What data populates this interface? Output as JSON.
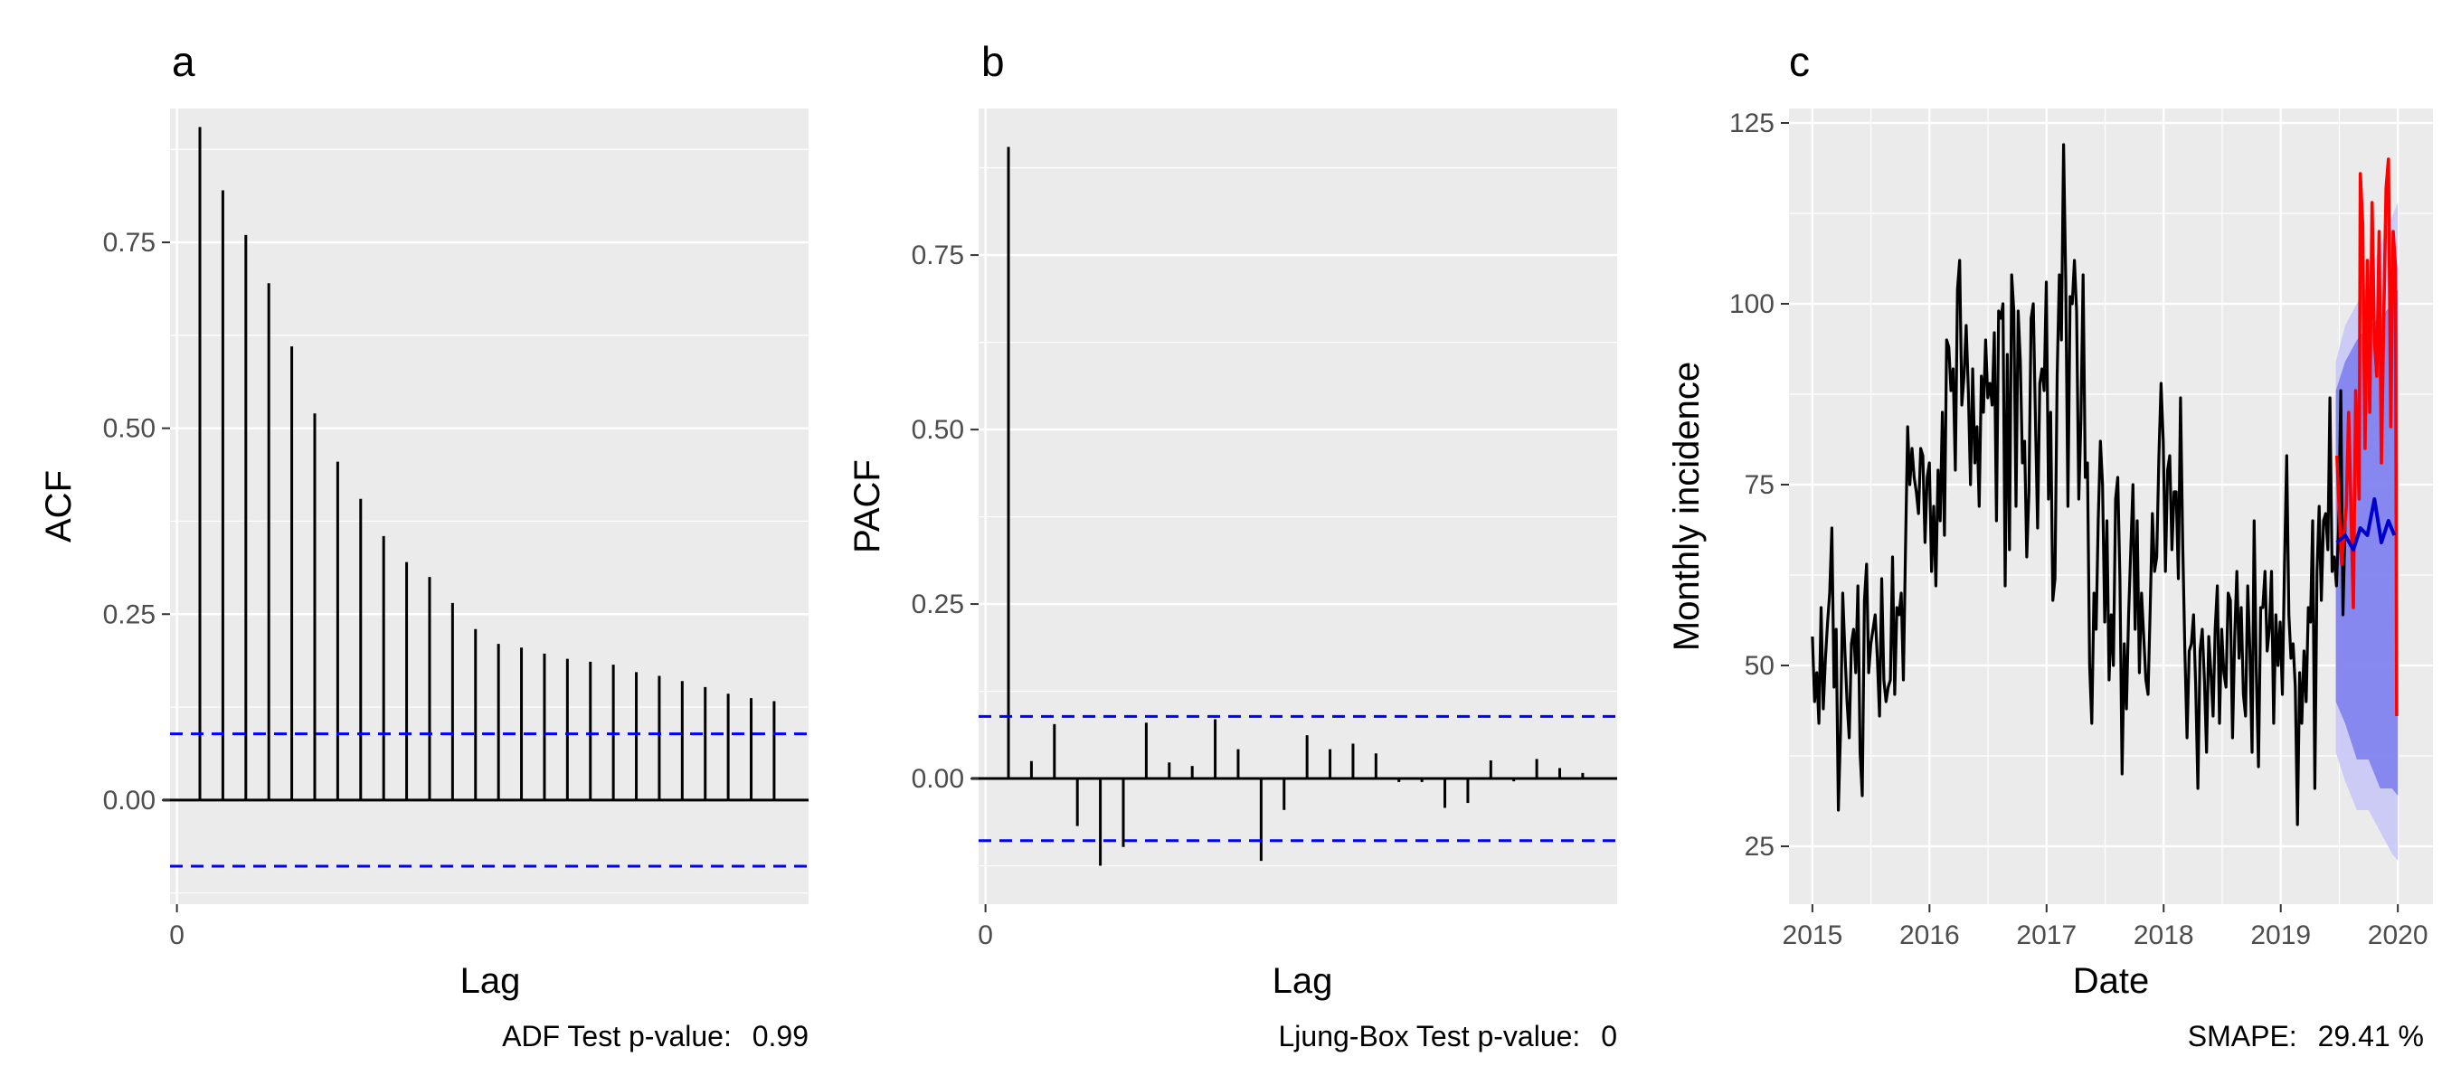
{
  "chart_data": [
    {
      "panel": "a",
      "type": "bar",
      "xlabel": "Lag",
      "ylabel": "ACF",
      "x_ticks": [
        0
      ],
      "y_ticks": [
        0.0,
        0.25,
        0.5,
        0.75
      ],
      "y_tick_labels": [
        "0.00",
        "0.25",
        "0.50",
        "0.75"
      ],
      "xlim": [
        -0.3,
        27.5
      ],
      "ylim": [
        -0.14,
        0.93
      ],
      "lags": [
        1,
        2,
        3,
        4,
        5,
        6,
        7,
        8,
        9,
        10,
        11,
        12,
        13,
        14,
        15,
        16,
        17,
        18,
        19,
        20,
        21,
        22,
        23,
        24,
        25,
        26
      ],
      "values": [
        0.905,
        0.82,
        0.76,
        0.695,
        0.61,
        0.52,
        0.455,
        0.405,
        0.355,
        0.32,
        0.3,
        0.265,
        0.23,
        0.21,
        0.205,
        0.197,
        0.19,
        0.186,
        0.182,
        0.172,
        0.167,
        0.16,
        0.152,
        0.143,
        0.137,
        0.133
      ],
      "ci": 0.089,
      "caption_label": "ADF Test p-value:",
      "caption_value": "0.99",
      "grid": true
    },
    {
      "panel": "b",
      "type": "bar",
      "xlabel": "Lag",
      "ylabel": "PACF",
      "x_ticks": [
        0
      ],
      "y_ticks": [
        0.0,
        0.25,
        0.5,
        0.75
      ],
      "y_tick_labels": [
        "0.00",
        "0.25",
        "0.50",
        "0.75"
      ],
      "xlim": [
        -0.3,
        27.5
      ],
      "ylim": [
        -0.18,
        0.96
      ],
      "lags": [
        1,
        2,
        3,
        4,
        5,
        6,
        7,
        8,
        9,
        10,
        11,
        12,
        13,
        14,
        15,
        16,
        17,
        18,
        19,
        20,
        21,
        22,
        23,
        24,
        25,
        26
      ],
      "values": [
        0.905,
        0.025,
        0.078,
        -0.068,
        -0.125,
        -0.098,
        0.08,
        0.023,
        0.018,
        0.085,
        0.042,
        -0.118,
        -0.045,
        0.062,
        0.042,
        0.05,
        0.036,
        -0.005,
        -0.005,
        -0.042,
        -0.035,
        0.026,
        -0.004,
        0.028,
        0.015,
        0.008
      ],
      "ci": 0.089,
      "caption_label": "Ljung-Box Test p-value:",
      "caption_value": "0",
      "grid": true
    },
    {
      "panel": "c",
      "type": "line",
      "xlabel": "Date",
      "ylabel": "Monthly incidence",
      "x_ticks": [
        2015,
        2016,
        2017,
        2018,
        2019,
        2020
      ],
      "y_ticks": [
        25,
        50,
        75,
        100,
        125
      ],
      "xlim": [
        2014.8,
        2020.3
      ],
      "ylim": [
        17,
        127
      ],
      "series": [
        {
          "role": "observed",
          "color": "#000000",
          "x_start": 2015.0,
          "x_step": 0.02,
          "values": [
            54,
            45,
            49,
            42,
            58,
            44,
            51,
            56,
            60,
            69,
            47,
            55,
            30,
            41,
            60,
            52,
            45,
            40,
            53,
            55,
            49,
            61,
            38,
            32,
            59,
            64,
            49,
            53,
            55,
            57,
            51,
            43,
            62,
            48,
            45,
            47,
            48,
            65,
            46,
            58,
            57,
            60,
            48,
            66,
            83,
            75,
            80,
            76,
            74,
            71,
            80,
            79,
            67,
            76,
            78,
            63,
            72,
            61,
            77,
            70,
            85,
            68,
            95,
            94,
            88,
            91,
            77,
            102,
            106,
            86,
            90,
            97,
            88,
            75,
            91,
            78,
            83,
            72,
            90,
            85,
            95,
            87,
            89,
            86,
            96,
            70,
            99,
            98,
            100,
            61,
            93,
            66,
            104,
            99,
            72,
            99,
            92,
            78,
            81,
            65,
            74,
            98,
            100,
            84,
            69,
            89,
            91,
            88,
            103,
            73,
            85,
            59,
            62,
            90,
            104,
            95,
            122,
            103,
            72,
            101,
            100,
            106,
            99,
            73,
            84,
            104,
            76,
            78,
            50,
            42,
            60,
            55,
            70,
            81,
            75,
            56,
            70,
            48,
            57,
            50,
            73,
            76,
            62,
            35,
            53,
            44,
            57,
            66,
            75,
            55,
            70,
            49,
            60,
            54,
            48,
            46,
            58,
            71,
            63,
            65,
            79,
            89,
            81,
            63,
            77,
            79,
            66,
            74,
            74,
            62,
            87,
            67,
            52,
            40,
            52,
            53,
            57,
            47,
            33,
            52,
            55,
            48,
            38,
            54,
            49,
            43,
            55,
            61,
            42,
            55,
            49,
            47,
            60,
            59,
            40,
            54,
            63,
            51,
            58,
            46,
            43,
            61,
            52,
            38,
            70,
            49,
            36,
            58,
            58,
            63,
            52,
            55,
            63,
            42,
            57,
            50,
            56,
            46,
            64,
            79,
            57,
            51,
            53,
            47,
            28,
            49,
            42,
            52,
            45,
            58,
            56,
            70,
            33,
            63,
            72,
            59,
            70,
            71,
            66,
            87,
            63,
            65,
            61,
            69,
            88,
            57,
            70
          ],
          "x_end_estimate": 2019.55
        },
        {
          "role": "forecast",
          "color": "#0000cc",
          "x": [
            2019.48,
            2019.55,
            2019.62,
            2019.68,
            2019.74,
            2019.8,
            2019.86,
            2019.92,
            2019.97
          ],
          "values": [
            67,
            68,
            66,
            69,
            68,
            73,
            67,
            70,
            68
          ]
        },
        {
          "role": "actual",
          "color": "#ff0000",
          "x": [
            2019.48,
            2019.52,
            2019.56,
            2019.58,
            2019.62,
            2019.64,
            2019.67,
            2019.68,
            2019.7,
            2019.72,
            2019.74,
            2019.76,
            2019.78,
            2019.8,
            2019.82,
            2019.84,
            2019.86,
            2019.88,
            2019.9,
            2019.92,
            2019.94,
            2019.96,
            2019.98,
            2019.99
          ],
          "values": [
            79,
            64,
            72,
            85,
            58,
            88,
            73,
            118,
            111,
            80,
            106,
            85,
            114,
            95,
            90,
            110,
            78,
            98,
            116,
            120,
            83,
            110,
            105,
            43
          ]
        },
        {
          "role": "band-80",
          "color": "#7b7bef",
          "x": [
            2019.47,
            2019.55,
            2019.65,
            2019.75,
            2019.85,
            2019.95,
            2020.0
          ],
          "lower": [
            45,
            42,
            37,
            37,
            33,
            33,
            32
          ],
          "upper": [
            88,
            92,
            95,
            97,
            98,
            100,
            102
          ]
        },
        {
          "role": "band-95",
          "color": "#c8c8f6",
          "x": [
            2019.47,
            2019.55,
            2019.65,
            2019.75,
            2019.85,
            2019.95,
            2020.0
          ],
          "lower": [
            38,
            34,
            30,
            30,
            27,
            24,
            23
          ],
          "upper": [
            92,
            97,
            100,
            104,
            108,
            112,
            114
          ]
        }
      ],
      "caption_label": "SMAPE:",
      "caption_value": "29.41 %",
      "grid": true
    }
  ]
}
